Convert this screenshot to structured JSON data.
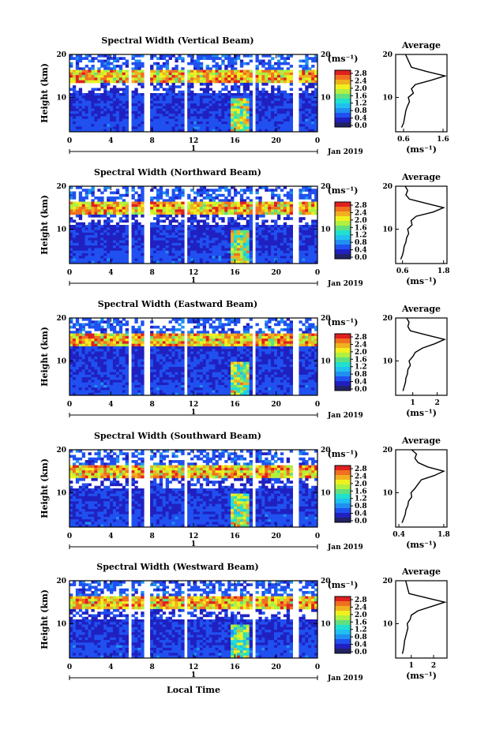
{
  "xlabel": "Local Time",
  "date_label": "Jan 2019",
  "day_marker": "1",
  "cbar_unit": "(ms⁻¹)",
  "avg_title": "Average",
  "avg_unit": "(ms⁻¹)",
  "ylabel": "Height (km)",
  "colors": [
    "#222266",
    "#2020c0",
    "#2050f0",
    "#2090f0",
    "#20c0f0",
    "#20e0d0",
    "#60e080",
    "#b0f040",
    "#f0f020",
    "#f0b020",
    "#f07020",
    "#e02020"
  ],
  "chart_data": [
    {
      "type": "heatmap",
      "title": "Spectral Width (Vertical Beam)",
      "x_ticks": [
        "0",
        "4",
        "8",
        "12",
        "16",
        "20",
        "0"
      ],
      "y_ticks": [
        "20",
        "10"
      ],
      "xlim": [
        0,
        24
      ],
      "ylim": [
        2,
        20
      ],
      "cbar_ticks": [
        "2.8",
        "2.4",
        "2.0",
        "1.6",
        "1.2",
        "0.8",
        "0.4",
        "0.0"
      ],
      "avg": {
        "x_ticks": [
          "0.6",
          "1.6"
        ],
        "xlim": [
          0.4,
          1.7
        ],
        "y_ticks": [
          "20",
          "10"
        ],
        "profile": [
          [
            0.55,
            3
          ],
          [
            0.6,
            4
          ],
          [
            0.62,
            5
          ],
          [
            0.64,
            6
          ],
          [
            0.66,
            7
          ],
          [
            0.7,
            8
          ],
          [
            0.75,
            9
          ],
          [
            0.72,
            10
          ],
          [
            0.85,
            11
          ],
          [
            0.8,
            12
          ],
          [
            0.9,
            13
          ],
          [
            1.3,
            14
          ],
          [
            1.65,
            15
          ],
          [
            1.2,
            16
          ],
          [
            0.8,
            17
          ],
          [
            0.75,
            18
          ],
          [
            0.7,
            19
          ],
          [
            0.65,
            20
          ]
        ]
      }
    },
    {
      "type": "heatmap",
      "title": "Spectral Width (Northward Beam)",
      "x_ticks": [
        "0",
        "4",
        "8",
        "12",
        "16",
        "20",
        "0"
      ],
      "y_ticks": [
        "20",
        "10"
      ],
      "xlim": [
        0,
        24
      ],
      "ylim": [
        2,
        20
      ],
      "cbar_ticks": [
        "2.8",
        "2.4",
        "2.0",
        "1.6",
        "1.2",
        "0.8",
        "0.4",
        "0.0"
      ],
      "avg": {
        "x_ticks": [
          "0.6",
          "1.8"
        ],
        "xlim": [
          0.4,
          1.9
        ],
        "y_ticks": [
          "20",
          "10"
        ],
        "profile": [
          [
            0.55,
            3
          ],
          [
            0.6,
            4
          ],
          [
            0.63,
            5
          ],
          [
            0.65,
            6
          ],
          [
            0.7,
            7
          ],
          [
            0.72,
            8
          ],
          [
            0.78,
            9
          ],
          [
            0.75,
            10
          ],
          [
            0.88,
            11
          ],
          [
            0.85,
            12
          ],
          [
            1.0,
            13
          ],
          [
            1.5,
            14
          ],
          [
            1.8,
            15
          ],
          [
            1.3,
            16
          ],
          [
            0.8,
            17
          ],
          [
            0.7,
            18
          ],
          [
            0.75,
            19
          ],
          [
            0.68,
            20
          ]
        ]
      }
    },
    {
      "type": "heatmap",
      "title": "Spectral Width (Eastward Beam)",
      "x_ticks": [
        "0",
        "4",
        "8",
        "12",
        "16",
        "20",
        "0"
      ],
      "y_ticks": [
        "20",
        "10"
      ],
      "xlim": [
        0,
        24
      ],
      "ylim": [
        2,
        20
      ],
      "cbar_ticks": [
        "2.8",
        "2.4",
        "2.0",
        "1.6",
        "1.2",
        "0.8",
        "0.4",
        "0.0"
      ],
      "avg": {
        "x_ticks": [
          "1",
          "2"
        ],
        "xlim": [
          0.3,
          2.4
        ],
        "y_ticks": [
          "20",
          "10"
        ],
        "profile": [
          [
            0.6,
            3
          ],
          [
            0.65,
            4
          ],
          [
            0.7,
            5
          ],
          [
            0.72,
            6
          ],
          [
            0.78,
            7
          ],
          [
            0.8,
            8
          ],
          [
            0.9,
            9
          ],
          [
            0.85,
            10
          ],
          [
            1.0,
            11
          ],
          [
            1.1,
            12
          ],
          [
            1.4,
            13
          ],
          [
            1.9,
            14
          ],
          [
            2.3,
            15
          ],
          [
            1.6,
            16
          ],
          [
            0.9,
            17
          ],
          [
            0.8,
            18
          ],
          [
            0.85,
            19
          ],
          [
            0.75,
            20
          ]
        ]
      }
    },
    {
      "type": "heatmap",
      "title": "Spectral Width (Southward Beam)",
      "x_ticks": [
        "0",
        "4",
        "8",
        "12",
        "16",
        "20",
        "0"
      ],
      "y_ticks": [
        "20",
        "10"
      ],
      "xlim": [
        0,
        24
      ],
      "ylim": [
        2,
        20
      ],
      "cbar_ticks": [
        "2.8",
        "2.4",
        "2.0",
        "1.6",
        "1.2",
        "0.8",
        "0.4",
        "0.0"
      ],
      "avg": {
        "x_ticks": [
          "0.4",
          "1.8"
        ],
        "xlim": [
          0.3,
          1.9
        ],
        "y_ticks": [
          "20",
          "10"
        ],
        "profile": [
          [
            0.5,
            3
          ],
          [
            0.55,
            4
          ],
          [
            0.6,
            5
          ],
          [
            0.62,
            6
          ],
          [
            0.68,
            7
          ],
          [
            0.7,
            8
          ],
          [
            0.8,
            9
          ],
          [
            0.78,
            10
          ],
          [
            0.9,
            11
          ],
          [
            1.0,
            12
          ],
          [
            1.1,
            13
          ],
          [
            1.5,
            14
          ],
          [
            1.8,
            15
          ],
          [
            1.3,
            16
          ],
          [
            1.0,
            17
          ],
          [
            0.9,
            18
          ],
          [
            0.95,
            19
          ],
          [
            0.8,
            20
          ]
        ]
      }
    },
    {
      "type": "heatmap",
      "title": "Spectral Width (Westward Beam)",
      "x_ticks": [
        "0",
        "4",
        "8",
        "12",
        "16",
        "20",
        "0"
      ],
      "y_ticks": [
        "20",
        "10"
      ],
      "xlim": [
        0,
        24
      ],
      "ylim": [
        2,
        20
      ],
      "cbar_ticks": [
        "2.8",
        "2.4",
        "2.0",
        "1.6",
        "1.2",
        "0.8",
        "0.4",
        "0.0"
      ],
      "avg": {
        "x_ticks": [
          "1",
          "2"
        ],
        "xlim": [
          0.3,
          2.6
        ],
        "y_ticks": [
          "20",
          "10"
        ],
        "profile": [
          [
            0.6,
            3
          ],
          [
            0.65,
            4
          ],
          [
            0.68,
            5
          ],
          [
            0.7,
            6
          ],
          [
            0.75,
            7
          ],
          [
            0.8,
            8
          ],
          [
            0.85,
            9
          ],
          [
            0.82,
            10
          ],
          [
            0.95,
            11
          ],
          [
            1.0,
            12
          ],
          [
            1.3,
            13
          ],
          [
            1.9,
            14
          ],
          [
            2.5,
            15
          ],
          [
            1.7,
            16
          ],
          [
            0.9,
            17
          ],
          [
            0.85,
            18
          ],
          [
            0.8,
            19
          ],
          [
            0.75,
            20
          ]
        ]
      }
    }
  ]
}
